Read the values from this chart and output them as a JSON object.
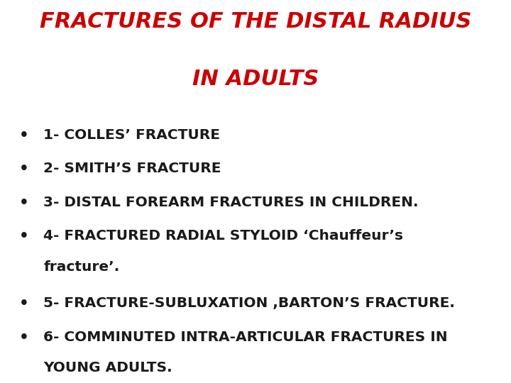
{
  "title_line1": "FRACTURES OF THE DISTAL RADIUS",
  "title_line2": "IN ADULTS",
  "title_color": "#CC0000",
  "title_fontsize": 22,
  "bullet_fontsize": 14.5,
  "bullet_color": "#1a1a1a",
  "bullet_char": "•",
  "background_color": "#ffffff",
  "items": [
    {
      "text": "1- COLLES’ FRACTURE",
      "continuation": false
    },
    {
      "text": "2- SMITH’S FRACTURE",
      "continuation": false
    },
    {
      "text": "3- DISTAL FOREARM FRACTURES IN CHILDREN.",
      "continuation": false
    },
    {
      "text": "4- FRACTURED RADIAL STYLOID ‘Chauffeur’s",
      "continuation": false
    },
    {
      "text": "fracture’.",
      "continuation": true
    },
    {
      "text": "5- FRACTURE-SUBLUXATION ,BARTON’S FRACTURE.",
      "continuation": false
    },
    {
      "text": "6- COMMINUTED INTRA-ARTICULAR FRACTURES IN",
      "continuation": false
    },
    {
      "text": "YOUNG ADULTS.",
      "continuation": true
    }
  ]
}
